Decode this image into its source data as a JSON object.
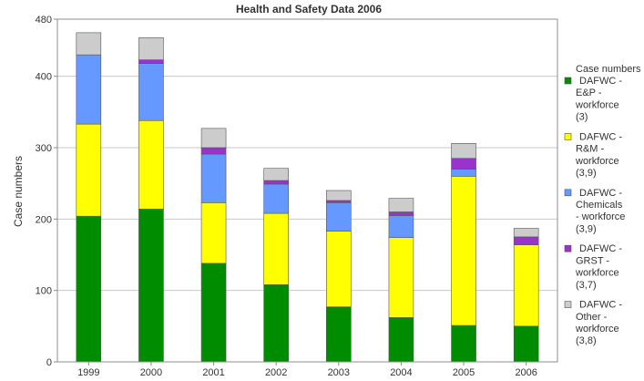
{
  "chart_data": {
    "type": "bar",
    "stacked": true,
    "title": "Health and Safety Data 2006",
    "xlabel": "",
    "ylabel": "Case numbers",
    "ylim": [
      0,
      480
    ],
    "yticks": [
      0,
      100,
      200,
      300,
      400,
      480
    ],
    "grid": true,
    "legend_position": "right",
    "legend_title": "Case numbers",
    "categories": [
      "1999",
      "2000",
      "2001",
      "2002",
      "2003",
      "2004",
      "2005",
      "2006"
    ],
    "series": [
      {
        "name": "DAFWC - E&P - workforce (3)",
        "legend_lines": [
          "DAFWC -",
          "E&P -",
          "workforce",
          "(3)"
        ],
        "color": "#008c00",
        "values": [
          204,
          214,
          138,
          108,
          77,
          62,
          51,
          50
        ]
      },
      {
        "name": "DAFWC - R&M - workforce (3,9)",
        "legend_lines": [
          "DAFWC -",
          "R&M -",
          "workforce",
          "(3,9)"
        ],
        "color": "#ffff00",
        "values": [
          129,
          124,
          85,
          100,
          106,
          112,
          209,
          114
        ]
      },
      {
        "name": "DAFWC - Chemicals - workforce (3,9)",
        "legend_lines": [
          "DAFWC -",
          "Chemicals",
          "- workforce",
          "(3,9)"
        ],
        "color": "#6699ff",
        "values": [
          97,
          80,
          68,
          41,
          40,
          31,
          10,
          0
        ]
      },
      {
        "name": "DAFWC - GRST - workforce (3,7)",
        "legend_lines": [
          "DAFWC -",
          "GRST -",
          "workforce",
          "(3,7)"
        ],
        "color": "#9933cc",
        "values": [
          0,
          5,
          9,
          5,
          3,
          5,
          15,
          11
        ]
      },
      {
        "name": "DAFWC - Other - workforce (3,8)",
        "legend_lines": [
          "DAFWC -",
          "Other -",
          "workforce",
          "(3,8)"
        ],
        "color": "#cccccc",
        "values": [
          31,
          31,
          27,
          17,
          14,
          19,
          21,
          12
        ]
      }
    ]
  }
}
